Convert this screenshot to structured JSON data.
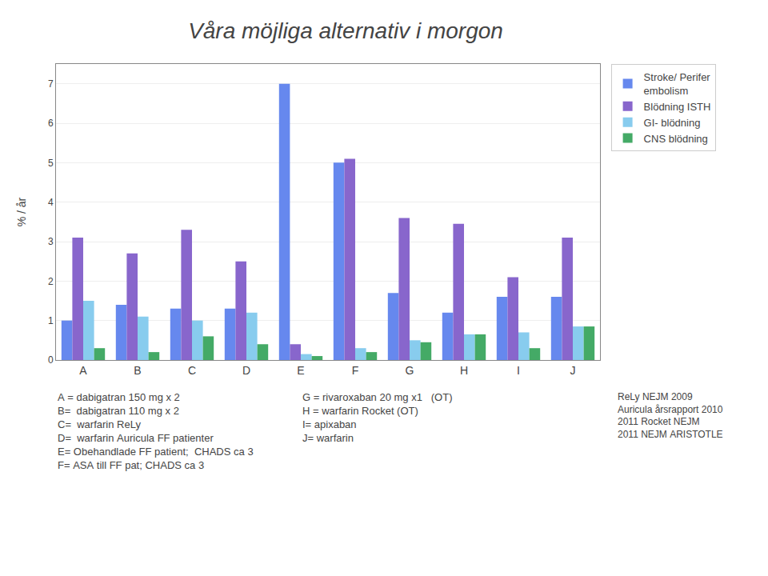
{
  "chart_data": {
    "type": "bar",
    "title": "Våra möjliga alternativ i morgon",
    "ylabel": "% / år",
    "categories": [
      "A",
      "B",
      "C",
      "D",
      "E",
      "F",
      "G",
      "H",
      "I",
      "J"
    ],
    "series": [
      {
        "name": "Stroke/ Perifer\nembolism",
        "color": "#6688EE",
        "values": [
          1.0,
          1.4,
          1.3,
          1.3,
          7.0,
          5.0,
          1.7,
          1.2,
          1.6,
          1.6
        ]
      },
      {
        "name": "Blödning ISTH",
        "color": "#8866CC",
        "values": [
          3.1,
          2.7,
          3.3,
          2.5,
          0.4,
          5.1,
          3.6,
          3.45,
          2.1,
          3.1
        ]
      },
      {
        "name": "GI- blödning",
        "color": "#88CCEE",
        "values": [
          1.5,
          1.1,
          1.0,
          1.2,
          0.15,
          0.3,
          0.5,
          0.65,
          0.7,
          0.85
        ]
      },
      {
        "name": "CNS blödning",
        "color": "#44AA66",
        "values": [
          0.3,
          0.2,
          0.6,
          0.4,
          0.1,
          0.2,
          0.45,
          0.65,
          0.3,
          0.85
        ]
      }
    ],
    "ylim": [
      0,
      7.5
    ],
    "yticks": [
      0,
      1,
      2,
      3,
      4,
      5,
      6,
      7
    ],
    "grid": true,
    "legend": "right",
    "annotations": [
      [
        "A = dabigatran 150 mg x 2",
        "B=  dabigatran 110 mg x 2",
        "C=  warfarin ReLy",
        "D=  warfarin Auricula FF patienter",
        "E= Obehandlade FF patient;  CHADS ca 3",
        "F= ASA till FF pat; CHADS ca 3"
      ],
      [
        "G = rivaroxaban 20 mg x1   (OT)",
        "H = warfarin Rocket (OT)",
        "I= apixaban",
        "J= warfarin"
      ],
      [
        "ReLy NEJM 2009",
        "Auricula årsrapport 2010",
        "2011 Rocket NEJM",
        "2011 NEJM ARISTOTLE"
      ]
    ]
  }
}
